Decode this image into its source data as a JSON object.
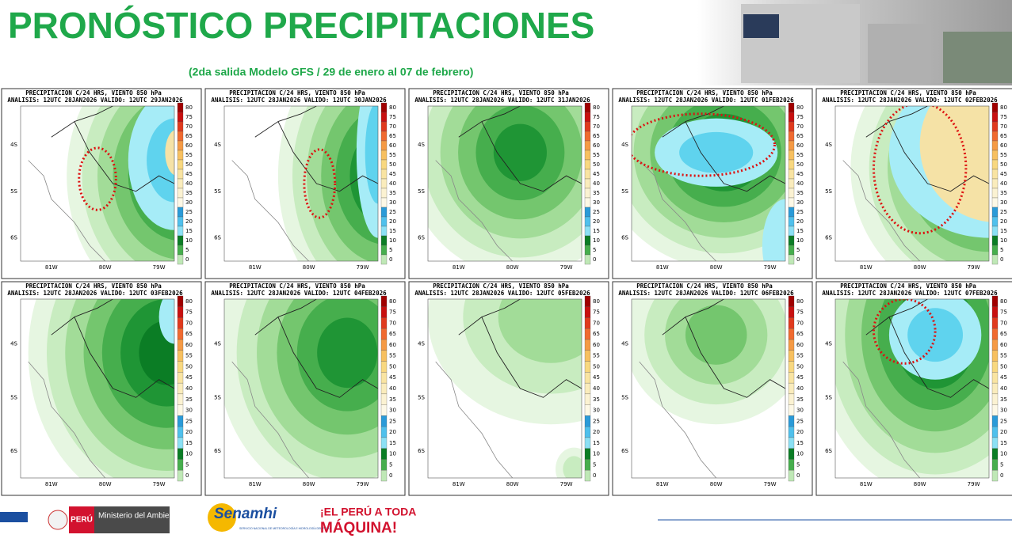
{
  "header": {
    "title": "PRONÓSTICO PRECIPITACIONES",
    "subtitle": "(2da salida Modelo GFS / 29 de enero al 07 de febrero)"
  },
  "panels": [
    {
      "title": "PRECIPITACION C/24 HRS, VIENTO 850 hPa",
      "analysis": "ANALISIS: 12UTC 28JAN2026 VALIDO: 12UTC 29JAN2026"
    },
    {
      "title": "PRECIPITACION C/24 HRS, VIENTO 850 hPa",
      "analysis": "ANALISIS: 12UTC 28JAN2026 VALIDO: 12UTC 30JAN2026"
    },
    {
      "title": "PRECIPITACION C/24 HRS, VIENTO 850 hPa",
      "analysis": "ANALISIS: 12UTC 28JAN2026 VALIDO: 12UTC 31JAN2026"
    },
    {
      "title": "PRECIPITACION C/24 HRS, VIENTO 850 hPa",
      "analysis": "ANALISIS: 12UTC 28JAN2026 VALIDO: 12UTC 01FEB2026"
    },
    {
      "title": "PRECIPITACION C/24 HRS, VIENTO 850 hPa",
      "analysis": "ANALISIS: 12UTC 28JAN2026 VALIDO: 12UTC 02FEB2026"
    },
    {
      "title": "PRECIPITACION C/24 HRS, VIENTO 850 hPa",
      "analysis": "ANALISIS: 12UTC 28JAN2026 VALIDO: 12UTC 03FEB2026"
    },
    {
      "title": "PRECIPITACION C/24 HRS, VIENTO 850 hPa",
      "analysis": "ANALISIS: 12UTC 28JAN2026 VALIDO: 12UTC 04FEB2026"
    },
    {
      "title": "PRECIPITACION C/24 HRS, VIENTO 850 hPa",
      "analysis": "ANALISIS: 12UTC 28JAN2026 VALIDO: 12UTC 05FEB2026"
    },
    {
      "title": "PRECIPITACION C/24 HRS, VIENTO 850 hPa",
      "analysis": "ANALISIS: 12UTC 28JAN2026 VALIDO: 12UTC 06FEB2026"
    },
    {
      "title": "PRECIPITACION C/24 HRS, VIENTO 850 hPa",
      "analysis": "ANALISIS: 12UTC 28JAN2026 VALIDO: 12UTC 07FEB2026"
    }
  ],
  "map": {
    "lat_labels": [
      "4S",
      "5S",
      "6S"
    ],
    "lon_labels": [
      "81W",
      "80W",
      "79W"
    ]
  },
  "colorbar": {
    "levels": [
      80,
      75,
      70,
      65,
      60,
      55,
      50,
      45,
      40,
      35,
      30,
      25,
      20,
      15,
      10,
      5,
      0
    ],
    "colors": [
      "#a00000",
      "#c81010",
      "#e03a1e",
      "#f06a30",
      "#f59a45",
      "#f7c060",
      "#f8d880",
      "#f9e4a2",
      "#faecbc",
      "#fbf2d2",
      "#fdf8e6",
      "#2a9ad8",
      "#4fc0ec",
      "#8be0f4",
      "#0b7d25",
      "#46ae4d",
      "#bfe8b6"
    ]
  },
  "footer": {
    "peru": "PERÚ",
    "ministry": "Ministerio del Ambiente",
    "senamhi": "Senamhi",
    "senamhi_sub": "SERVICIO NACIONAL DE METEOROLOGÍA E HIDROLOGÍA DEL PERÚ",
    "slogan_1": "¡EL PERÚ A TODA",
    "slogan_2": "MÁQUINA!"
  }
}
